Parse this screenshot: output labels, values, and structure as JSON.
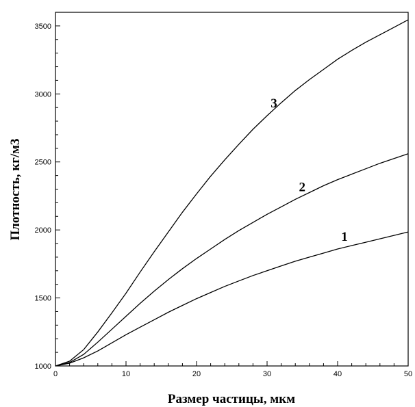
{
  "chart_data": {
    "type": "line",
    "title": "",
    "xlabel": "Размер частицы, мкм",
    "ylabel": "Плотность, кг/м3",
    "xlim": [
      0,
      50
    ],
    "ylim": [
      1000,
      3600
    ],
    "x_ticks": [
      0,
      10,
      20,
      30,
      40,
      50
    ],
    "y_ticks": [
      1000,
      1500,
      2000,
      2500,
      3000,
      3500
    ],
    "grid": false,
    "legend": "none",
    "series": [
      {
        "name": "1",
        "x": [
          0,
          2,
          4,
          6,
          8,
          10,
          12,
          14,
          16,
          18,
          20,
          22,
          24,
          26,
          28,
          30,
          32,
          34,
          36,
          38,
          40,
          42,
          44,
          46,
          48,
          50
        ],
        "y": [
          1000,
          1020,
          1060,
          1110,
          1170,
          1230,
          1285,
          1340,
          1395,
          1445,
          1495,
          1540,
          1585,
          1625,
          1665,
          1700,
          1735,
          1770,
          1800,
          1830,
          1860,
          1885,
          1910,
          1935,
          1960,
          1985
        ]
      },
      {
        "name": "2",
        "x": [
          0,
          2,
          4,
          6,
          8,
          10,
          12,
          14,
          16,
          18,
          20,
          22,
          24,
          26,
          28,
          30,
          32,
          34,
          36,
          38,
          40,
          42,
          44,
          46,
          48,
          50
        ],
        "y": [
          1000,
          1025,
          1085,
          1175,
          1270,
          1365,
          1460,
          1550,
          1635,
          1715,
          1790,
          1860,
          1930,
          1995,
          2055,
          2115,
          2170,
          2225,
          2275,
          2325,
          2370,
          2410,
          2450,
          2490,
          2525,
          2560
        ]
      },
      {
        "name": "3",
        "x": [
          0,
          2,
          4,
          6,
          8,
          10,
          12,
          14,
          16,
          18,
          20,
          22,
          24,
          26,
          28,
          30,
          32,
          34,
          36,
          38,
          40,
          42,
          44,
          46,
          48,
          50
        ],
        "y": [
          1000,
          1035,
          1120,
          1250,
          1390,
          1535,
          1690,
          1840,
          1985,
          2130,
          2265,
          2395,
          2515,
          2630,
          2740,
          2840,
          2935,
          3025,
          3105,
          3180,
          3255,
          3320,
          3380,
          3435,
          3490,
          3545
        ]
      }
    ]
  }
}
